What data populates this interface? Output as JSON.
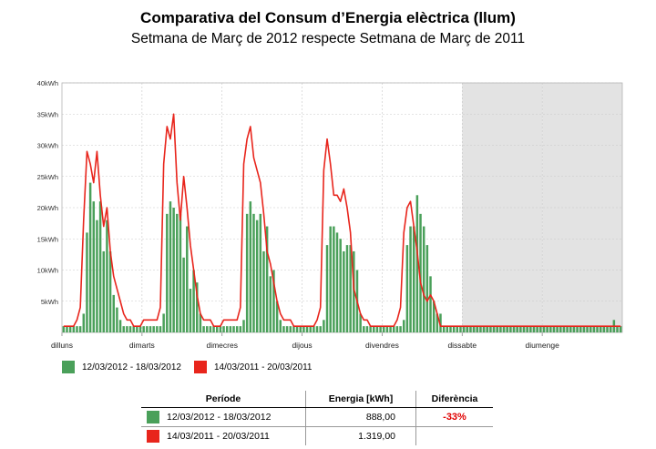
{
  "title": "Comparativa del Consum d’Energia elèctrica (llum)",
  "subtitle": "Setmana de Març de 2012 respecte Setmana de Març de 2011",
  "colors": {
    "bars": "#4aa05a",
    "line": "#e8251c",
    "weekend": "#e3e3e3",
    "grid": "#c8c8c8"
  },
  "legend": [
    {
      "label": "12/03/2012 - 18/03/2012",
      "color": "#4aa05a"
    },
    {
      "label": "14/03/2011 - 20/03/2011",
      "color": "#e8251c"
    }
  ],
  "table": {
    "headers": [
      "Període",
      "Energia [kWh]",
      "Diferència"
    ],
    "rows": [
      {
        "period": "12/03/2012 - 18/03/2012",
        "energy": "888,00",
        "diff": "-33%",
        "color": "#4aa05a"
      },
      {
        "period": "14/03/2011 - 20/03/2011",
        "energy": "1.319,00",
        "diff": "",
        "color": "#e8251c"
      }
    ]
  },
  "chart_data": {
    "type": "bar",
    "x_ticks": [
      "dilluns",
      "dimarts",
      "dimecres",
      "dijous",
      "divendres",
      "dissabte",
      "diumenge"
    ],
    "y_ticks": [
      "",
      "5kWh",
      "10kWh",
      "15kWh",
      "20kWh",
      "25kWh",
      "30kWh",
      "35kWh",
      "40kWh"
    ],
    "ylim": [
      0,
      40
    ],
    "grid": true,
    "shaded_days": [
      "dissabte",
      "diumenge"
    ],
    "series": [
      {
        "name": "12/03/2012 - 18/03/2012",
        "kind": "bar",
        "values": [
          1,
          1,
          1,
          1,
          1,
          1,
          3,
          16,
          24,
          21,
          18,
          21,
          13,
          18,
          13,
          6,
          4,
          2,
          1,
          1,
          1,
          1,
          1,
          1,
          1,
          1,
          1,
          1,
          1,
          1,
          3,
          19,
          21,
          20,
          19,
          19,
          12,
          17,
          7,
          10,
          8,
          3,
          1,
          1,
          1,
          1,
          1,
          1,
          1,
          1,
          1,
          1,
          1,
          1,
          2,
          19,
          21,
          19,
          18,
          19,
          13,
          17,
          9,
          10,
          5,
          2,
          1,
          1,
          1,
          1,
          1,
          1,
          1,
          1,
          1,
          1,
          1,
          1,
          2,
          14,
          17,
          17,
          16,
          15,
          13,
          14,
          14,
          13,
          10,
          3,
          1,
          1,
          1,
          1,
          1,
          1,
          1,
          1,
          1,
          1,
          1,
          1,
          2,
          14,
          17,
          17,
          22,
          19,
          17,
          14,
          9,
          5,
          3,
          3,
          1,
          1,
          1,
          1,
          1,
          1,
          1,
          1,
          1,
          1,
          1,
          1,
          1,
          1,
          1,
          1,
          1,
          1,
          1,
          1,
          1,
          1,
          1,
          1,
          1,
          1,
          1,
          1,
          1,
          1,
          1,
          1,
          1,
          1,
          1,
          1,
          1,
          1,
          1,
          1,
          1,
          1,
          1,
          1,
          1,
          1,
          1,
          1,
          1,
          1,
          1,
          2,
          1,
          1
        ]
      },
      {
        "name": "14/03/2011 - 20/03/2011",
        "kind": "line",
        "values": [
          1,
          1,
          1,
          1,
          2,
          4,
          18,
          29,
          27,
          24,
          29,
          22,
          17,
          20,
          13,
          9,
          7,
          5,
          3,
          2,
          2,
          1,
          1,
          1,
          2,
          2,
          2,
          2,
          2,
          4,
          27,
          33,
          31,
          35,
          24,
          18,
          25,
          20,
          14,
          10,
          6,
          3,
          2,
          2,
          2,
          1,
          1,
          1,
          2,
          2,
          2,
          2,
          2,
          4,
          27,
          31,
          33,
          28,
          26,
          24,
          19,
          13,
          11,
          8,
          5,
          3,
          2,
          2,
          2,
          1,
          1,
          1,
          1,
          1,
          1,
          1,
          2,
          4,
          26,
          31,
          27,
          22,
          22,
          21,
          23,
          20,
          16,
          7,
          5,
          3,
          2,
          2,
          1,
          1,
          1,
          1,
          1,
          1,
          1,
          1,
          2,
          4,
          16,
          20,
          21,
          17,
          13,
          8,
          6,
          5,
          6,
          5,
          3,
          1,
          1,
          1,
          1,
          1,
          1,
          1,
          1,
          1,
          1,
          1,
          1,
          1,
          1,
          1,
          1,
          1,
          1,
          1,
          1,
          1,
          1,
          1,
          1,
          1,
          1,
          1,
          1,
          1,
          1,
          1,
          1,
          1,
          1,
          1,
          1,
          1,
          1,
          1,
          1,
          1,
          1,
          1,
          1,
          1,
          1,
          1,
          1,
          1,
          1,
          1,
          1,
          1,
          1,
          1
        ]
      }
    ]
  }
}
